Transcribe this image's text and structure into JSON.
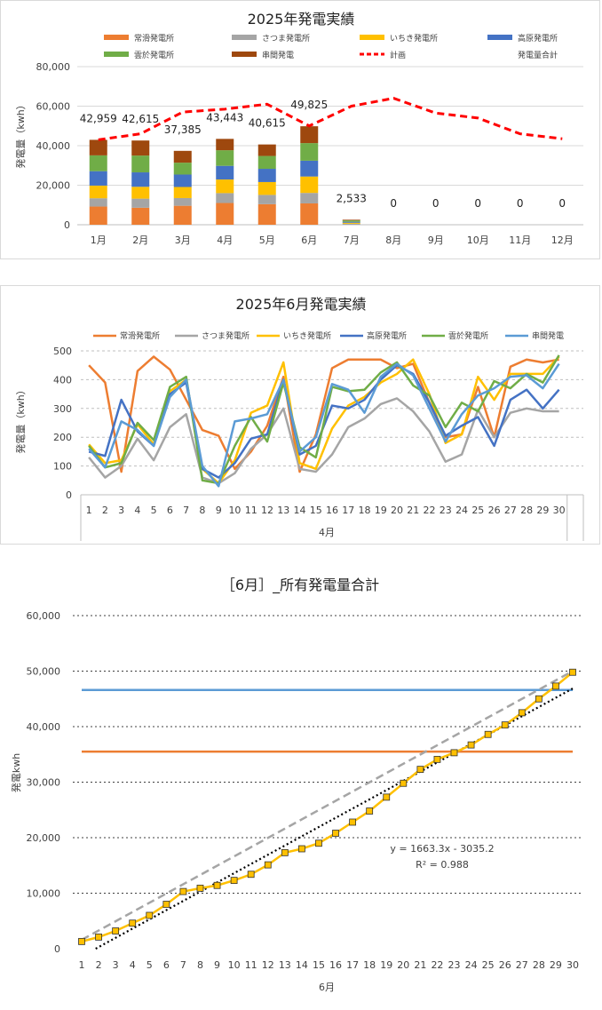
{
  "chart_data": [
    {
      "type": "bar",
      "title": "2025年発電実績",
      "ylabel": "発電量（kwh）",
      "ylim": [
        0,
        80000
      ],
      "yticks": [
        "0",
        "20,000",
        "40,000",
        "60,000",
        "80,000"
      ],
      "categories": [
        "1月",
        "2月",
        "3月",
        "4月",
        "5月",
        "6月",
        "7月",
        "8月",
        "9月",
        "10月",
        "11月",
        "12月"
      ],
      "stacked": true,
      "series": [
        {
          "name": "常滑発電所",
          "color": "#ED7D31",
          "values": [
            9200,
            8600,
            9600,
            11000,
            10400,
            10800,
            0,
            0,
            0,
            0,
            0,
            0
          ]
        },
        {
          "name": "さつま発電所",
          "color": "#A5A5A5",
          "values": [
            4200,
            4600,
            3900,
            5000,
            4700,
            5300,
            500,
            0,
            0,
            0,
            0,
            0
          ]
        },
        {
          "name": "いちき発電所",
          "color": "#FFC000",
          "values": [
            6400,
            6000,
            5600,
            6900,
            6500,
            8300,
            500,
            0,
            0,
            0,
            0,
            0
          ]
        },
        {
          "name": "高原発電所",
          "color": "#4472C4",
          "values": [
            7300,
            7300,
            6300,
            6900,
            6700,
            8000,
            500,
            0,
            0,
            0,
            0,
            0
          ]
        },
        {
          "name": "雲於発電所",
          "color": "#70AD47",
          "values": [
            8000,
            8500,
            6000,
            7900,
            6500,
            8900,
            700,
            0,
            0,
            0,
            0,
            0
          ]
        },
        {
          "name": "串間発電",
          "color": "#9E480E",
          "values": [
            7859,
            7615,
            5985,
            5743,
            5815,
            8525,
            333,
            0,
            0,
            0,
            0,
            0
          ]
        }
      ],
      "plan": {
        "name": "計画",
        "color": "#FF0000",
        "values": [
          43000,
          46000,
          57000,
          58500,
          61000,
          50000,
          60000,
          64000,
          56500,
          54000,
          46000,
          43500
        ]
      },
      "total": {
        "name": "発電量合計",
        "labels": [
          "42,959",
          "42,615",
          "37,385",
          "43,443",
          "40,615",
          "49,825",
          "2,533",
          "0",
          "0",
          "0",
          "0",
          "0"
        ],
        "values": [
          42959,
          42615,
          37385,
          43443,
          40615,
          49825,
          2533,
          0,
          0,
          0,
          0,
          0
        ]
      }
    },
    {
      "type": "line",
      "title": "2025年6月発電実績",
      "ylabel": "発電量（kwh）",
      "ylim": [
        0,
        500
      ],
      "yticks": [
        "0",
        "100",
        "200",
        "300",
        "400",
        "500"
      ],
      "x": [
        "1",
        "2",
        "3",
        "4",
        "5",
        "6",
        "7",
        "8",
        "9",
        "10",
        "11",
        "12",
        "13",
        "14",
        "15",
        "16",
        "17",
        "18",
        "19",
        "20",
        "21",
        "22",
        "23",
        "24",
        "25",
        "26",
        "27",
        "28",
        "29",
        "30"
      ],
      "xgroup": "4月",
      "series": [
        {
          "name": "常滑発電所",
          "color": "#ED7D31",
          "values": [
            450,
            390,
            80,
            430,
            480,
            435,
            330,
            225,
            205,
            90,
            150,
            240,
            410,
            80,
            210,
            440,
            470,
            470,
            470,
            440,
            455,
            320,
            200,
            210,
            375,
            200,
            445,
            470,
            460,
            470
          ]
        },
        {
          "name": "さつま発電所",
          "color": "#A5A5A5",
          "values": [
            130,
            60,
            100,
            195,
            120,
            235,
            280,
            60,
            40,
            75,
            160,
            210,
            300,
            90,
            80,
            140,
            235,
            265,
            315,
            335,
            290,
            220,
            115,
            140,
            295,
            200,
            285,
            300,
            290,
            290
          ]
        },
        {
          "name": "いちき発電所",
          "color": "#FFC000",
          "values": [
            175,
            110,
            120,
            245,
            175,
            360,
            400,
            90,
            40,
            120,
            285,
            310,
            460,
            110,
            90,
            230,
            310,
            340,
            390,
            420,
            470,
            350,
            180,
            210,
            410,
            330,
            420,
            420,
            420,
            480
          ]
        },
        {
          "name": "高原発電所",
          "color": "#4472C4",
          "values": [
            150,
            135,
            330,
            220,
            170,
            350,
            390,
            90,
            60,
            110,
            195,
            210,
            400,
            140,
            170,
            310,
            300,
            330,
            400,
            450,
            420,
            320,
            205,
            240,
            270,
            170,
            330,
            365,
            300,
            365
          ]
        },
        {
          "name": "雲於発電所",
          "color": "#70AD47",
          "values": [
            170,
            95,
            110,
            250,
            190,
            375,
            410,
            50,
            40,
            170,
            270,
            185,
            390,
            165,
            130,
            375,
            360,
            365,
            425,
            460,
            380,
            345,
            235,
            320,
            290,
            395,
            370,
            420,
            390,
            485
          ]
        },
        {
          "name": "串間発電",
          "color": "#5B9BD5",
          "values": [
            160,
            95,
            255,
            225,
            170,
            340,
            400,
            100,
            30,
            255,
            265,
            280,
            400,
            150,
            200,
            385,
            365,
            285,
            410,
            455,
            415,
            300,
            185,
            280,
            345,
            370,
            410,
            415,
            370,
            455
          ]
        }
      ]
    },
    {
      "type": "line",
      "title": "［6月］_所有発電量合計",
      "xlabel": "6月",
      "ylabel": "発電kwh",
      "ylim": [
        0,
        60000
      ],
      "yticks": [
        "0",
        "10,000",
        "20,000",
        "30,000",
        "40,000",
        "50,000",
        "60,000"
      ],
      "x": [
        "1",
        "2",
        "3",
        "4",
        "5",
        "6",
        "7",
        "8",
        "9",
        "10",
        "11",
        "12",
        "13",
        "14",
        "15",
        "16",
        "17",
        "18",
        "19",
        "20",
        "21",
        "22",
        "23",
        "24",
        "25",
        "26",
        "27",
        "28",
        "29",
        "30"
      ],
      "cumulative": {
        "color": "#FFC000",
        "values": [
          1300,
          2100,
          3200,
          4600,
          6000,
          8000,
          10300,
          10900,
          11400,
          12300,
          13400,
          15100,
          17300,
          18000,
          19000,
          20800,
          22800,
          24800,
          27300,
          29800,
          32300,
          34100,
          35300,
          36700,
          38600,
          40300,
          42500,
          45000,
          47300,
          49800
        ]
      },
      "trendline": {
        "equation": "y = 1663.3x - 3035.2",
        "r2": "R² = 0.988",
        "slope": 1663.3,
        "intercept": -3035.2
      },
      "plan_line": {
        "color": "#A5A5A5",
        "start": 1600,
        "end": 50000
      },
      "hlines": [
        {
          "color": "#5B9BD5",
          "value": 46600
        },
        {
          "color": "#ED7D31",
          "value": 35500
        }
      ]
    }
  ]
}
